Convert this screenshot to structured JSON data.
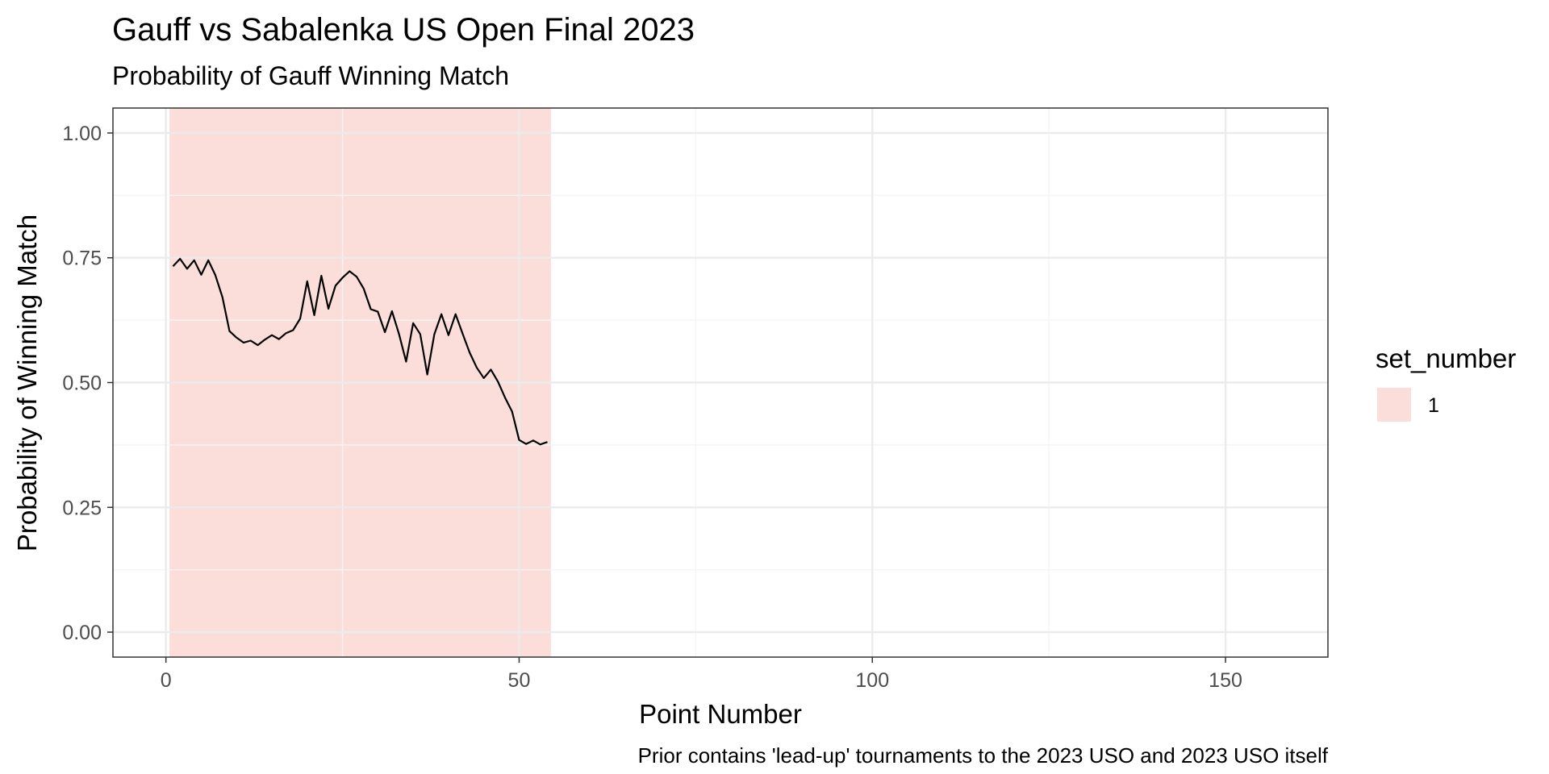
{
  "chart_data": {
    "type": "line",
    "title": "Gauff vs Sabalenka US Open Final 2023",
    "subtitle": "Probability of Gauff Winning Match",
    "xlabel": "Point Number",
    "ylabel": "Probability of Winning Match",
    "caption": "Prior contains 'lead-up' tournaments to the 2023 USO and 2023 USO itself",
    "xlim": [
      -7.5,
      164.5
    ],
    "ylim": [
      -0.05,
      1.05
    ],
    "x_ticks": [
      0,
      50,
      100,
      150
    ],
    "x_tick_labels": [
      "0",
      "50",
      "100",
      "150"
    ],
    "y_ticks": [
      0,
      0.25,
      0.5,
      0.75,
      1.0
    ],
    "y_tick_labels": [
      "0.00",
      "0.25",
      "0.50",
      "0.75",
      "1.00"
    ],
    "grid": true,
    "colors": {
      "line": "#000000",
      "set_band": "#fbdeda",
      "grid_major": "#ebebeb",
      "grid_minor": "#f5f5f5",
      "panel_border": "#333333"
    },
    "legend": {
      "title": "set_number",
      "position": "right",
      "entries": [
        {
          "label": "1",
          "color": "#fbdeda"
        }
      ]
    },
    "set_bands": [
      {
        "set": "1",
        "x_start": 0.5,
        "x_end": 54.5
      }
    ],
    "series": [
      {
        "x": [
          1,
          2,
          3,
          4,
          5,
          6,
          7,
          8,
          9,
          10,
          11,
          12,
          13,
          14,
          15,
          16,
          17,
          18,
          19,
          20,
          21,
          22,
          23,
          24,
          25,
          26,
          27,
          28,
          29,
          30,
          31,
          32,
          33,
          34,
          35,
          36,
          37,
          38,
          39,
          40,
          41,
          42,
          43,
          44,
          45,
          46,
          47,
          48,
          49,
          50,
          51,
          52,
          53,
          54
        ],
        "y": [
          0.733,
          0.748,
          0.728,
          0.745,
          0.716,
          0.745,
          0.715,
          0.671,
          0.603,
          0.59,
          0.58,
          0.584,
          0.575,
          0.586,
          0.595,
          0.587,
          0.599,
          0.605,
          0.628,
          0.703,
          0.635,
          0.714,
          0.648,
          0.694,
          0.71,
          0.723,
          0.712,
          0.688,
          0.647,
          0.642,
          0.601,
          0.643,
          0.597,
          0.542,
          0.619,
          0.597,
          0.516,
          0.597,
          0.637,
          0.595,
          0.637,
          0.598,
          0.56,
          0.53,
          0.509,
          0.526,
          0.502,
          0.47,
          0.442,
          0.385,
          0.377,
          0.384,
          0.376,
          0.381
        ]
      }
    ]
  }
}
